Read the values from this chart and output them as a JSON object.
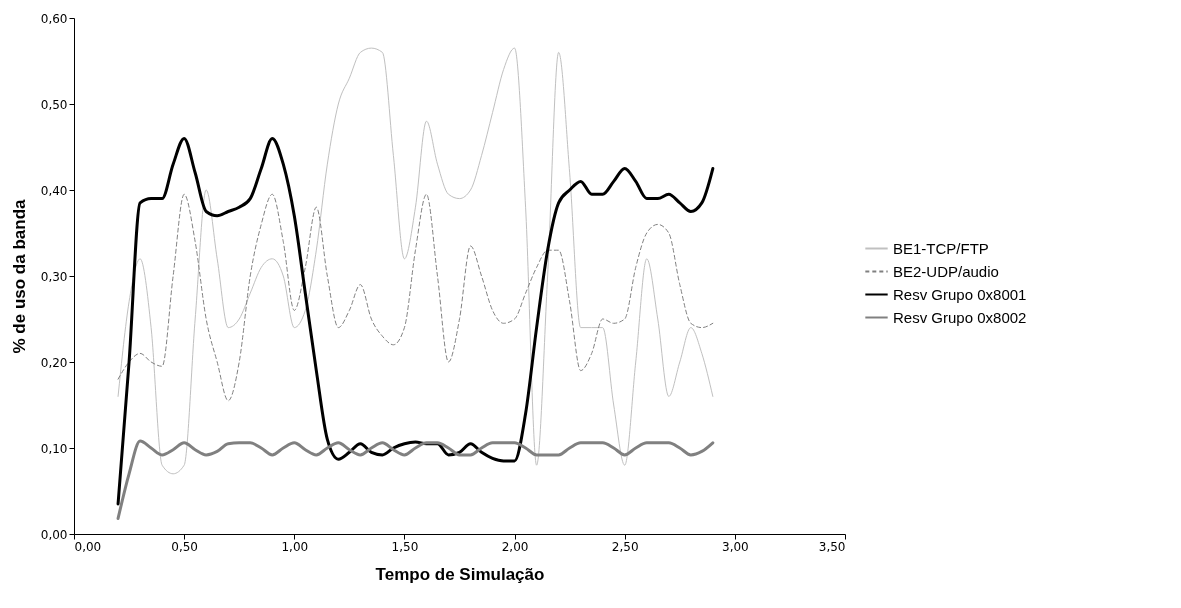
{
  "chart_data": {
    "type": "line",
    "xlabel": "Tempo de Simulação",
    "ylabel": "% de uso da banda",
    "x": [
      0.2,
      0.25,
      0.3,
      0.35,
      0.4,
      0.45,
      0.5,
      0.55,
      0.6,
      0.65,
      0.7,
      0.75,
      0.8,
      0.85,
      0.9,
      0.95,
      1.0,
      1.05,
      1.1,
      1.15,
      1.2,
      1.25,
      1.3,
      1.35,
      1.4,
      1.45,
      1.5,
      1.55,
      1.6,
      1.65,
      1.7,
      1.75,
      1.8,
      1.85,
      1.9,
      1.95,
      2.0,
      2.05,
      2.1,
      2.15,
      2.2,
      2.25,
      2.3,
      2.35,
      2.4,
      2.45,
      2.5,
      2.55,
      2.6,
      2.65,
      2.7,
      2.75,
      2.8,
      2.85,
      2.9
    ],
    "series": [
      {
        "name": "BE1-TCP/FTP",
        "color": "#c0c0c0",
        "line_style": "solid",
        "values": [
          0.16,
          0.27,
          0.32,
          0.24,
          0.08,
          0.07,
          0.08,
          0.25,
          0.4,
          0.32,
          0.24,
          0.25,
          0.28,
          0.31,
          0.32,
          0.3,
          0.24,
          0.26,
          0.33,
          0.43,
          0.5,
          0.53,
          0.56,
          0.565,
          0.56,
          0.44,
          0.32,
          0.38,
          0.48,
          0.43,
          0.395,
          0.39,
          0.4,
          0.44,
          0.49,
          0.54,
          0.565,
          0.38,
          0.08,
          0.3,
          0.56,
          0.42,
          0.24,
          0.24,
          0.24,
          0.15,
          0.08,
          0.2,
          0.32,
          0.25,
          0.16,
          0.2,
          0.24,
          0.21,
          0.16
        ]
      },
      {
        "name": "BE2-UDP/audio",
        "color": "#808080",
        "line_style": "dashed",
        "values": [
          0.18,
          0.2,
          0.21,
          0.2,
          0.195,
          0.3,
          0.395,
          0.34,
          0.25,
          0.2,
          0.155,
          0.2,
          0.3,
          0.36,
          0.395,
          0.34,
          0.26,
          0.31,
          0.38,
          0.3,
          0.24,
          0.26,
          0.29,
          0.25,
          0.23,
          0.22,
          0.24,
          0.33,
          0.395,
          0.3,
          0.2,
          0.25,
          0.335,
          0.3,
          0.26,
          0.245,
          0.25,
          0.28,
          0.31,
          0.33,
          0.33,
          0.27,
          0.19,
          0.21,
          0.25,
          0.245,
          0.25,
          0.31,
          0.35,
          0.36,
          0.35,
          0.29,
          0.245,
          0.24,
          0.245
        ]
      },
      {
        "name": "Resv Grupo 0x8001",
        "color": "#000000",
        "line_style": "solid",
        "values": [
          0.035,
          0.2,
          0.385,
          0.39,
          0.39,
          0.43,
          0.46,
          0.42,
          0.375,
          0.37,
          0.375,
          0.38,
          0.39,
          0.425,
          0.46,
          0.43,
          0.37,
          0.28,
          0.19,
          0.11,
          0.087,
          0.095,
          0.105,
          0.095,
          0.092,
          0.1,
          0.105,
          0.107,
          0.105,
          0.105,
          0.092,
          0.095,
          0.105,
          0.095,
          0.088,
          0.085,
          0.085,
          0.14,
          0.24,
          0.33,
          0.385,
          0.4,
          0.41,
          0.395,
          0.395,
          0.41,
          0.425,
          0.41,
          0.39,
          0.39,
          0.395,
          0.385,
          0.375,
          0.385,
          0.425
        ]
      },
      {
        "name": "Resv Grupo 0x8002",
        "color": "#808080",
        "line_style": "solid",
        "values": [
          0.018,
          0.07,
          0.108,
          0.1,
          0.092,
          0.098,
          0.106,
          0.098,
          0.092,
          0.096,
          0.105,
          0.106,
          0.106,
          0.1,
          0.092,
          0.1,
          0.106,
          0.098,
          0.092,
          0.1,
          0.106,
          0.098,
          0.092,
          0.1,
          0.106,
          0.098,
          0.092,
          0.1,
          0.106,
          0.106,
          0.1,
          0.092,
          0.092,
          0.1,
          0.106,
          0.106,
          0.106,
          0.1,
          0.092,
          0.092,
          0.092,
          0.1,
          0.106,
          0.106,
          0.106,
          0.1,
          0.092,
          0.1,
          0.106,
          0.106,
          0.106,
          0.1,
          0.092,
          0.096,
          0.106
        ]
      }
    ],
    "xlim": [
      0,
      3.5
    ],
    "xticks": [
      {
        "value": 0,
        "label": "0,00"
      },
      {
        "value": 0.5,
        "label": "0,50"
      },
      {
        "value": 1,
        "label": "1,00"
      },
      {
        "value": 1.5,
        "label": "1,50"
      },
      {
        "value": 2,
        "label": "2,00"
      },
      {
        "value": 2.5,
        "label": "2,50"
      },
      {
        "value": 3,
        "label": "3,00"
      },
      {
        "value": 3.5,
        "label": "3,50"
      }
    ],
    "ylim": [
      0,
      0.6
    ],
    "yticks": [
      {
        "value": 0,
        "label": "0,00"
      },
      {
        "value": 0.1,
        "label": "0,10"
      },
      {
        "value": 0.2,
        "label": "0,20"
      },
      {
        "value": 0.3,
        "label": "0,30"
      },
      {
        "value": 0.4,
        "label": "0,40"
      },
      {
        "value": 0.5,
        "label": "0,50"
      },
      {
        "value": 0.6,
        "label": "0,60"
      }
    ],
    "grid": false,
    "legend": "right"
  }
}
